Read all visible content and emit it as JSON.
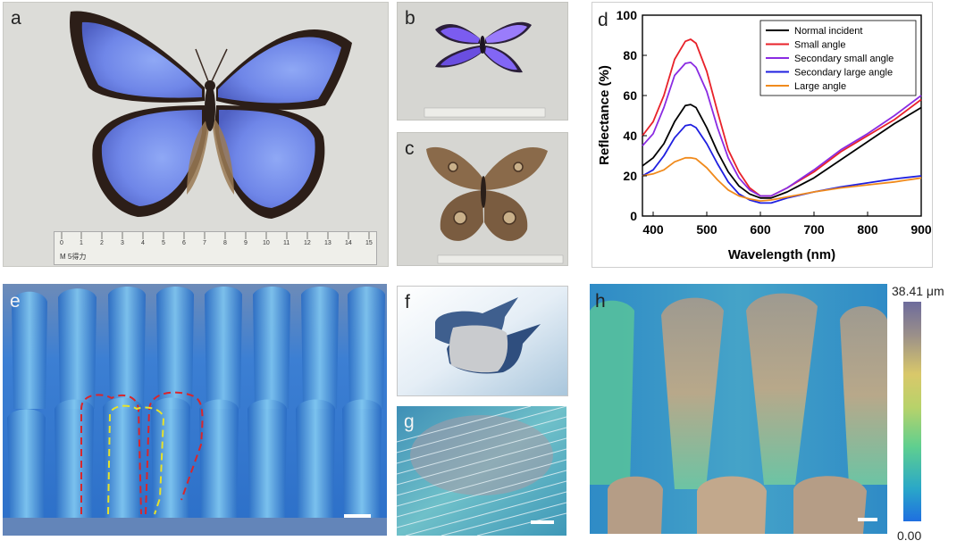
{
  "panels": {
    "a": {
      "label": "a",
      "ruler": {
        "ticks": [
          "0",
          "1",
          "2",
          "3",
          "4",
          "5",
          "6",
          "7",
          "8",
          "9",
          "10",
          "11",
          "12",
          "13",
          "14",
          "15"
        ],
        "brand": "M 5得力"
      }
    },
    "b": {
      "label": "b"
    },
    "c": {
      "label": "c"
    },
    "d": {
      "label": "d"
    },
    "e": {
      "label": "e"
    },
    "f": {
      "label": "f"
    },
    "g": {
      "label": "g"
    },
    "h": {
      "label": "h",
      "colorbar": {
        "max_label": "38.41 μm",
        "min_label": "0.00"
      }
    }
  },
  "colors": {
    "normal": "#000000",
    "small": "#e8222a",
    "sec_small": "#8a2be2",
    "sec_large": "#1f1fe0",
    "large": "#f08a1c",
    "wing_blue": "#6f86e8",
    "outline_red": "#d9262c",
    "outline_yellow": "#e6e22a"
  },
  "chart_data": {
    "type": "line",
    "title": "",
    "xlabel": "Wavelength (nm)",
    "ylabel": "Reflectance (%)",
    "xlim": [
      380,
      900
    ],
    "ylim": [
      0,
      100
    ],
    "xticks": [
      400,
      500,
      600,
      700,
      800,
      900
    ],
    "yticks": [
      0,
      20,
      40,
      60,
      80,
      100
    ],
    "legend_position": "top-right",
    "series": [
      {
        "name": "Normal incident",
        "color": "#000000",
        "x": [
          380,
          400,
          420,
          440,
          460,
          470,
          480,
          500,
          520,
          540,
          560,
          580,
          600,
          620,
          650,
          700,
          750,
          800,
          850,
          900
        ],
        "y": [
          25,
          29,
          36,
          47,
          55,
          55.5,
          54,
          44,
          32,
          22,
          15,
          11,
          9,
          9,
          12,
          19,
          28,
          37,
          46,
          54
        ]
      },
      {
        "name": "Small angle",
        "color": "#e8222a",
        "x": [
          380,
          400,
          420,
          440,
          460,
          470,
          480,
          500,
          520,
          540,
          560,
          580,
          600,
          620,
          650,
          700,
          750,
          800,
          850,
          900
        ],
        "y": [
          40,
          47,
          60,
          78,
          87,
          88,
          86,
          72,
          52,
          33,
          22,
          14,
          10,
          10,
          14,
          22,
          32,
          40,
          48,
          58
        ]
      },
      {
        "name": "Secondary small angle",
        "color": "#8a2be2",
        "x": [
          380,
          400,
          420,
          440,
          460,
          470,
          480,
          500,
          520,
          540,
          560,
          580,
          600,
          620,
          650,
          700,
          750,
          800,
          850,
          900
        ],
        "y": [
          35,
          41,
          54,
          70,
          76,
          76.5,
          74,
          62,
          44,
          29,
          19,
          13,
          10,
          10,
          14,
          23,
          33,
          41,
          50,
          60
        ]
      },
      {
        "name": "Secondary large angle",
        "color": "#1f1fe0",
        "x": [
          380,
          400,
          420,
          440,
          460,
          470,
          480,
          500,
          520,
          540,
          560,
          580,
          600,
          620,
          650,
          700,
          750,
          800,
          850,
          900
        ],
        "y": [
          20,
          23,
          30,
          39,
          45,
          45.5,
          44,
          36,
          26,
          17,
          11,
          8,
          6.5,
          6.5,
          9,
          12,
          14.5,
          16.5,
          18.5,
          20
        ]
      },
      {
        "name": "Large angle",
        "color": "#f08a1c",
        "x": [
          380,
          400,
          420,
          440,
          460,
          470,
          480,
          500,
          520,
          540,
          560,
          580,
          600,
          620,
          650,
          700,
          750,
          800,
          850,
          900
        ],
        "y": [
          20,
          21,
          23,
          27,
          29,
          29,
          28.5,
          24,
          18,
          13,
          10,
          8.5,
          7.5,
          8,
          9.5,
          12,
          14,
          15.5,
          17,
          19
        ]
      }
    ]
  }
}
